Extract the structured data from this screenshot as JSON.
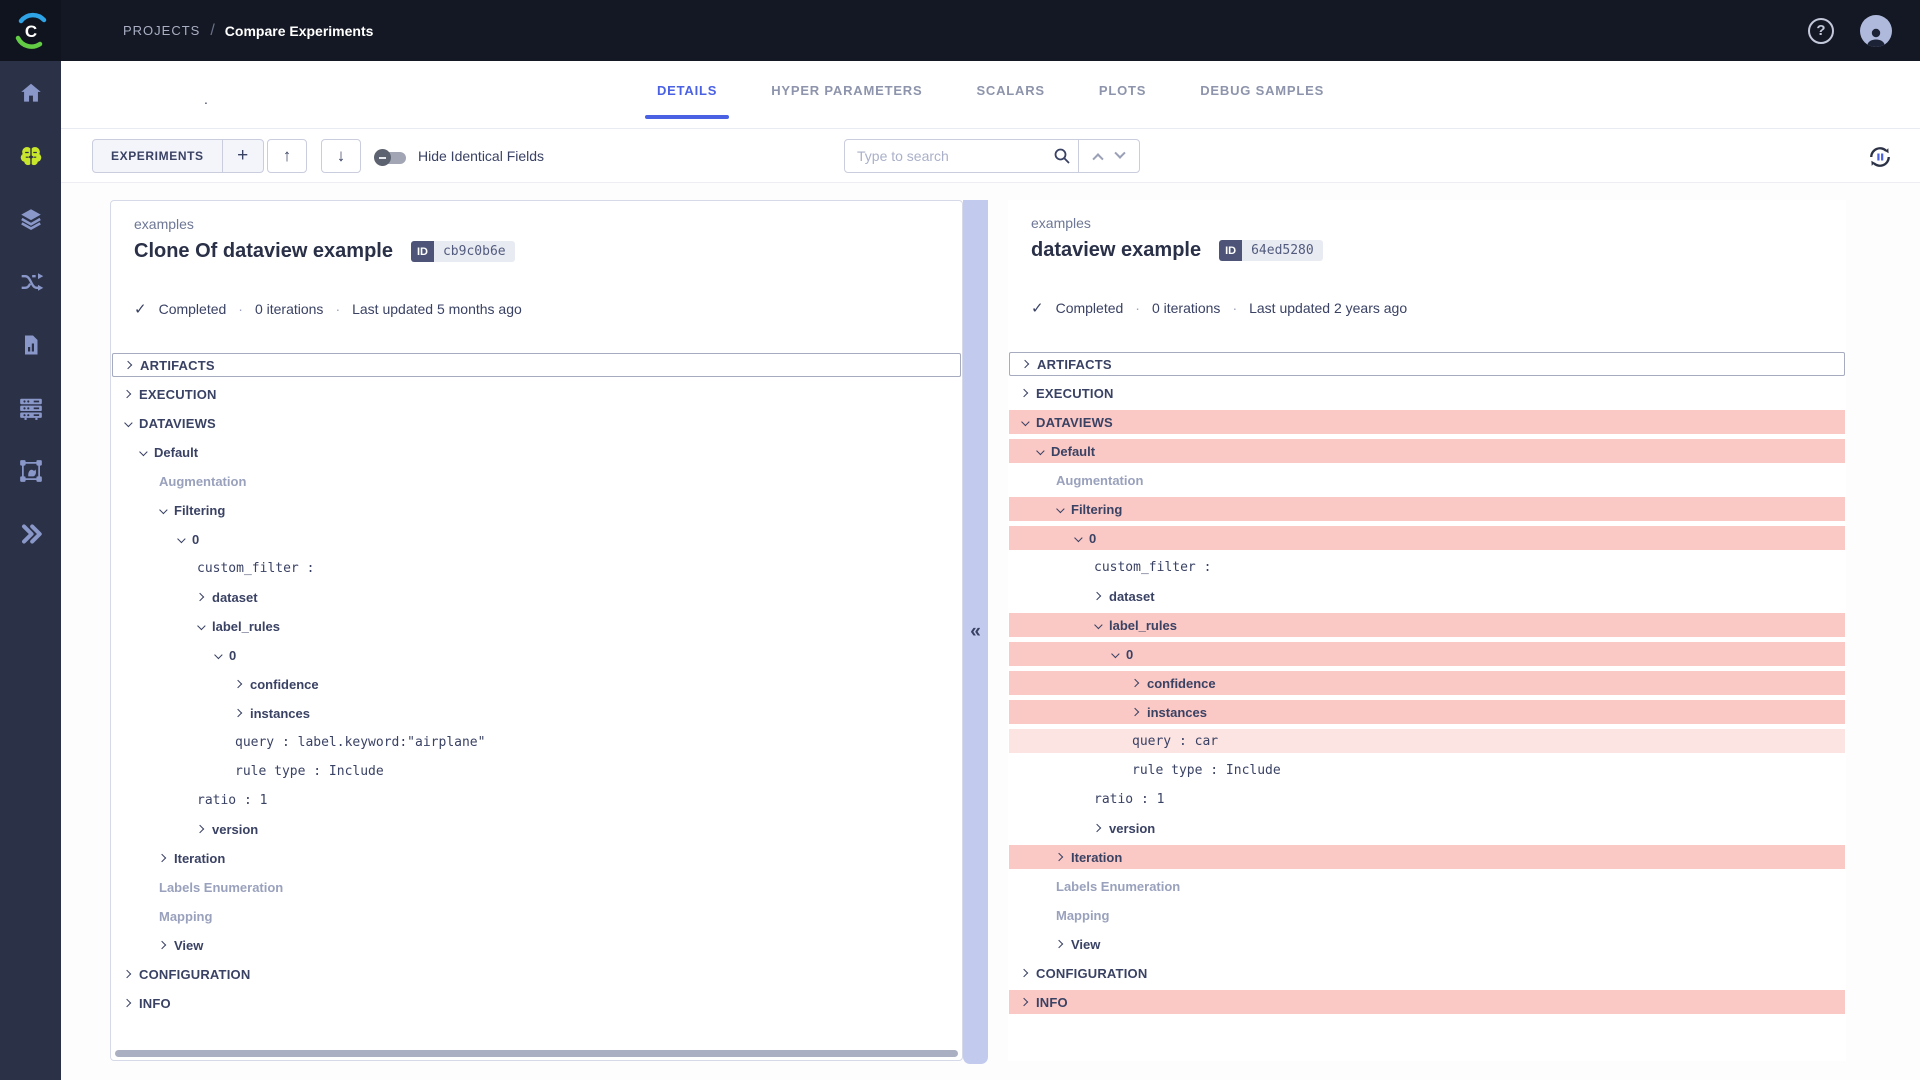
{
  "topbar": {
    "breadcrumb_root": "PROJECTS",
    "breadcrumb_sep": "/",
    "breadcrumb_current": "Compare Experiments",
    "help_glyph": "?"
  },
  "sidebar": {
    "items": [
      "dashboard",
      "projects",
      "datasets",
      "pipelines",
      "reports",
      "workers-queues",
      "annotator",
      "applications"
    ],
    "active_item": "projects"
  },
  "tabs": {
    "items": [
      "DETAILS",
      "HYPER PARAMETERS",
      "SCALARS",
      "PLOTS",
      "DEBUG SAMPLES"
    ],
    "active": "DETAILS"
  },
  "header_dot": ".",
  "toolbar": {
    "experiments_label": "EXPERIMENTS",
    "add_label": "+",
    "up_glyph": "↑",
    "down_glyph": "↓",
    "toggle_label": "Hide Identical Fields",
    "toggle_state": "off",
    "search_placeholder": "Type to search"
  },
  "panels": [
    {
      "project": "examples",
      "title": "Clone Of dataview example",
      "id_label": "ID",
      "id_value": "cb9c0b6e",
      "status": "Completed",
      "iterations": "0 iterations",
      "updated": "Last updated 5 months ago"
    },
    {
      "project": "examples",
      "title": "dataview example",
      "id_label": "ID",
      "id_value": "64ed5280",
      "status": "Completed",
      "iterations": "0 iterations",
      "updated": "Last updated 2 years ago"
    }
  ],
  "icons": {
    "check": "✓",
    "dot_separator": "·",
    "collapse_left": "«"
  },
  "tree": {
    "rows": [
      {
        "id": "artifacts",
        "label": "ARTIFACTS",
        "level": 0,
        "arrow": "right",
        "kind": "section",
        "boxed": true
      },
      {
        "id": "execution",
        "label": "EXECUTION",
        "level": 0,
        "arrow": "right",
        "kind": "section"
      },
      {
        "id": "dataviews",
        "label": "DATAVIEWS",
        "level": 0,
        "arrow": "down",
        "kind": "section",
        "diff": "full"
      },
      {
        "id": "default",
        "label": "Default",
        "level": 1,
        "arrow": "down",
        "kind": "node",
        "diff": "full"
      },
      {
        "id": "augmentation",
        "label": "Augmentation",
        "level": 2,
        "kind": "muted"
      },
      {
        "id": "filtering",
        "label": "Filtering",
        "level": 2,
        "arrow": "down",
        "kind": "node",
        "diff": "full"
      },
      {
        "id": "filtering-0",
        "label": "0",
        "level": 3,
        "arrow": "down",
        "kind": "node",
        "diff": "full"
      },
      {
        "id": "custom-filter",
        "label": "custom_filter :",
        "level": 4,
        "kind": "mono"
      },
      {
        "id": "dataset",
        "label": "dataset",
        "level": 4,
        "arrow": "right",
        "kind": "node"
      },
      {
        "id": "label-rules",
        "label": "label_rules",
        "level": 4,
        "arrow": "down",
        "kind": "node",
        "diff": "full"
      },
      {
        "id": "label-rules-0",
        "label": "0",
        "level": 5,
        "arrow": "down",
        "kind": "node",
        "diff": "full"
      },
      {
        "id": "confidence",
        "label": "confidence",
        "level": 6,
        "arrow": "right",
        "kind": "node",
        "diff": "full"
      },
      {
        "id": "instances",
        "label": "instances",
        "level": 6,
        "arrow": "right",
        "kind": "node",
        "diff": "full"
      },
      {
        "id": "query",
        "label_left": "query : label.keyword:\"airplane\"",
        "label_right": "query : car",
        "level": 6,
        "kind": "mono",
        "diff": "value"
      },
      {
        "id": "rule-type",
        "label": "rule type : Include",
        "level": 6,
        "kind": "mono"
      },
      {
        "id": "ratio",
        "label": "ratio : 1",
        "level": 4,
        "kind": "mono"
      },
      {
        "id": "version",
        "label": "version",
        "level": 4,
        "arrow": "right",
        "kind": "node"
      },
      {
        "id": "iteration",
        "label": "Iteration",
        "level": 2,
        "arrow": "right",
        "kind": "node",
        "diff": "full"
      },
      {
        "id": "labels-enumeration",
        "label": "Labels Enumeration",
        "level": 2,
        "kind": "muted"
      },
      {
        "id": "mapping",
        "label": "Mapping",
        "level": 2,
        "kind": "muted"
      },
      {
        "id": "view",
        "label": "View",
        "level": 2,
        "arrow": "right",
        "kind": "node"
      },
      {
        "id": "configuration",
        "label": "CONFIGURATION",
        "level": 0,
        "arrow": "right",
        "kind": "section"
      },
      {
        "id": "info",
        "label": "INFO",
        "level": 0,
        "arrow": "right",
        "kind": "section",
        "diff": "full"
      }
    ]
  },
  "colors": {
    "topbar_bg": "#141824",
    "sidebar_bg": "#2b3147",
    "accent": "#4a61e4",
    "active_icon": "#c8e62b",
    "diff_row": "#fac8c5",
    "diff_value_row": "#fce4e2",
    "divider": "#c2cbee",
    "tree_text": "#3a4264"
  }
}
